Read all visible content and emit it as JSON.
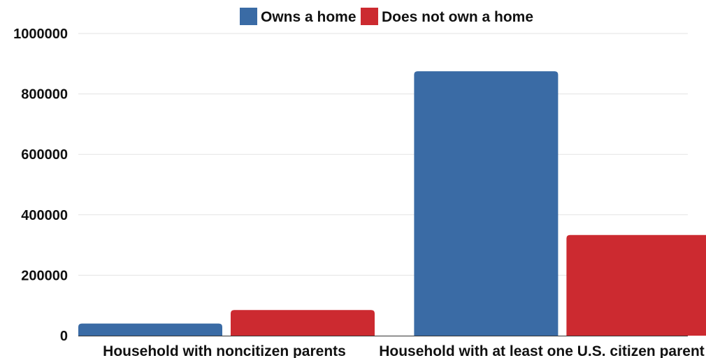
{
  "chart_data": {
    "type": "bar",
    "title": "",
    "xlabel": "",
    "ylabel": "",
    "categories": [
      "Household with noncitizen parents",
      "Household with at least one U.S. citizen parent"
    ],
    "series": [
      {
        "name": "Owns a home",
        "values": [
          40000,
          875000
        ],
        "color": "#3a6ba5"
      },
      {
        "name": "Does not own a home",
        "values": [
          85000,
          333000
        ],
        "color": "#cc2a30"
      }
    ],
    "ylim": [
      0,
      1000000
    ],
    "yticks": [
      "0",
      "200000",
      "400000",
      "600000",
      "800000",
      "1000000"
    ],
    "grid": true,
    "legend": "top-center"
  }
}
